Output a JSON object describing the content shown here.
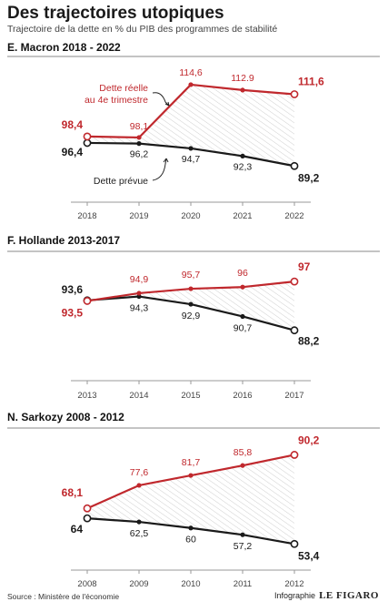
{
  "title": "Des trajectoires utopiques",
  "subtitle": "Trajectoire de la dette en % du PIB des programmes de stabilité",
  "colors": {
    "reelle": "#c0282d",
    "prevue": "#1a1a1a",
    "axis": "#999999",
    "hatch": "#d4d4d4"
  },
  "chart_data": [
    {
      "type": "line",
      "title": "E. Macron 2018 - 2022",
      "x": [
        "2018",
        "2019",
        "2020",
        "2021",
        "2022"
      ],
      "ylim": [
        87,
        116
      ],
      "series": [
        {
          "name": "Dette réelle au 4e trimestre",
          "key": "reelle",
          "values": [
            98.4,
            98.1,
            114.6,
            112.9,
            111.6
          ],
          "labels": [
            "98,4",
            "98,1",
            "114,6",
            "112.9",
            "111,6"
          ]
        },
        {
          "name": "Dette prévue",
          "key": "prevue",
          "values": [
            96.4,
            96.2,
            94.7,
            92.3,
            89.2
          ],
          "labels": [
            "96,4",
            "96,2",
            "94,7",
            "92,3",
            "89,2"
          ]
        }
      ],
      "annotations": [
        "Dette réelle au 4e trimestre",
        "Dette prévue"
      ]
    },
    {
      "type": "line",
      "title": "F. Hollande 2013-2017",
      "x": [
        "2013",
        "2014",
        "2015",
        "2016",
        "2017"
      ],
      "ylim": [
        87,
        98.5
      ],
      "series": [
        {
          "key": "reelle",
          "values": [
            93.5,
            94.9,
            95.7,
            96,
            97
          ],
          "labels": [
            "93,5",
            "94,9",
            "95,7",
            "96",
            "97"
          ]
        },
        {
          "key": "prevue",
          "values": [
            93.6,
            94.3,
            92.9,
            90.7,
            88.2
          ],
          "labels": [
            "93,6",
            "94,3",
            "92,9",
            "90,7",
            "88,2"
          ]
        }
      ]
    },
    {
      "type": "line",
      "title": "N. Sarkozy 2008 - 2012",
      "x": [
        "2008",
        "2009",
        "2010",
        "2011",
        "2012"
      ],
      "ylim": [
        52,
        91.5
      ],
      "series": [
        {
          "key": "reelle",
          "values": [
            68.1,
            77.6,
            81.7,
            85.8,
            90.2
          ],
          "labels": [
            "68,1",
            "77,6",
            "81,7",
            "85,8",
            "90,2"
          ]
        },
        {
          "key": "prevue",
          "values": [
            64,
            62.5,
            60,
            57.2,
            53.4
          ],
          "labels": [
            "64",
            "62,5",
            "60",
            "57,2",
            "53,4"
          ]
        }
      ]
    }
  ],
  "source": "Source : Ministère de l'économie",
  "credit": {
    "label": "Infographie",
    "logo": "LE FIGARO"
  }
}
